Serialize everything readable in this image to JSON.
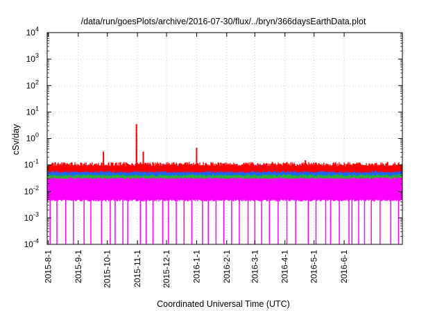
{
  "chart_data": {
    "type": "line",
    "title": "/data/run/goesPlots/archive/2016-07-30/flux/../bryn/366daysEarthData.plot",
    "xlabel": "Coordinated Universal Time (UTC)",
    "ylabel": "cSv/day",
    "y_scale": "log",
    "ylim": [
      0.0001,
      10000
    ],
    "xlim": [
      "2015-07-31",
      "2016-07-31"
    ],
    "grid": true,
    "legend": "none",
    "x_ticks": [
      "2015-8-1",
      "2015-9-1",
      "2015-10-1",
      "2015-11-1",
      "2015-12-1",
      "2016-1-1",
      "2016-2-1",
      "2016-3-1",
      "2016-4-1",
      "2016-5-1",
      "2016-6-1"
    ],
    "y_ticks": [
      {
        "base": "10",
        "exp": "4",
        "value": 10000
      },
      {
        "base": "10",
        "exp": "3",
        "value": 1000
      },
      {
        "base": "10",
        "exp": "2",
        "value": 100
      },
      {
        "base": "10",
        "exp": "1",
        "value": 10
      },
      {
        "base": "10",
        "exp": "0",
        "value": 1
      },
      {
        "base": "10",
        "exp": "-1",
        "value": 0.1
      },
      {
        "base": "10",
        "exp": "-2",
        "value": 0.01
      },
      {
        "base": "10",
        "exp": "-3",
        "value": 0.001
      },
      {
        "base": "10",
        "exp": "-4",
        "value": 0.0001
      }
    ],
    "series": [
      {
        "color": "#ff0000",
        "baseline": 0.09,
        "low": 0.06,
        "spikes": [
          [
            "2015-09-27",
            0.32
          ],
          [
            "2015-10-31",
            3.5
          ],
          [
            "2015-11-07",
            0.32
          ],
          [
            "2016-01-01",
            0.45
          ],
          [
            "2016-03-19",
            0.13
          ],
          [
            "2016-04-22",
            0.15
          ]
        ]
      },
      {
        "color": "#1e64ff",
        "baseline": 0.075,
        "low": 0.045,
        "spikes": [
          [
            "2015-09-27",
            0.15
          ],
          [
            "2015-10-31",
            1.6
          ],
          [
            "2015-11-07",
            0.15
          ],
          [
            "2016-01-01",
            0.2
          ]
        ]
      },
      {
        "color": "#2ab82a",
        "baseline": 0.048,
        "low": 0.035,
        "spikes": [
          [
            "2015-10-31",
            0.4
          ]
        ]
      },
      {
        "color": "#ff00ff",
        "baseline": 0.045,
        "low": 0.005,
        "dips": [
          "2015-08-03",
          "2015-08-10",
          "2015-08-19",
          "2015-08-27",
          "2015-09-07",
          "2015-09-14",
          "2015-09-25",
          "2015-10-04",
          "2015-10-09",
          "2015-10-17",
          "2015-10-22",
          "2015-11-04",
          "2015-11-10",
          "2015-11-17",
          "2015-11-27",
          "2015-12-03",
          "2015-12-11",
          "2015-12-19",
          "2015-12-27",
          "2016-01-07",
          "2016-01-13",
          "2016-01-21",
          "2016-01-29",
          "2016-02-06",
          "2016-02-14",
          "2016-02-23",
          "2016-03-01",
          "2016-03-08",
          "2016-03-16",
          "2016-03-25",
          "2016-04-03",
          "2016-04-12",
          "2016-04-25",
          "2016-05-03",
          "2016-05-13",
          "2016-05-18",
          "2016-05-27",
          "2016-06-06",
          "2016-06-09",
          "2016-06-16",
          "2016-06-22",
          "2016-06-29",
          "2016-07-08",
          "2016-07-19",
          "2016-07-27"
        ]
      }
    ]
  }
}
